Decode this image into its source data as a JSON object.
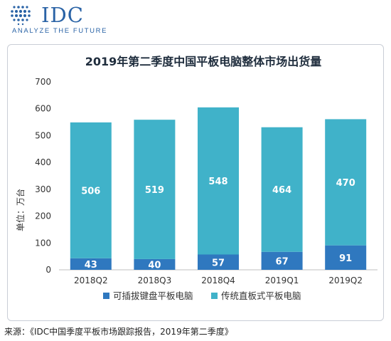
{
  "brand": {
    "logo_text": "IDC",
    "tagline": "ANALYZE THE FUTURE"
  },
  "chart_data": {
    "type": "bar",
    "stacked": true,
    "title": "2019年第二季度中国平板电脑整体市场出货量",
    "ylabel": "单位：万台",
    "xlabel": "",
    "ylim": [
      0,
      700
    ],
    "yticks": [
      0,
      100,
      200,
      300,
      400,
      500,
      600,
      700
    ],
    "grid": false,
    "legend": "bottom",
    "categories": [
      "2018Q2",
      "2018Q3",
      "2018Q4",
      "2019Q1",
      "2019Q2"
    ],
    "series": [
      {
        "name": "可插拔键盘平板电脑",
        "values": [
          43,
          40,
          57,
          67,
          91
        ],
        "color": "#2f78bf"
      },
      {
        "name": "传统直板式平板电脑",
        "values": [
          506,
          519,
          548,
          464,
          470
        ],
        "color": "#40b2c9"
      }
    ]
  },
  "source": "来源：《IDC中国季度平板市场跟踪报告，2019年第二季度》"
}
